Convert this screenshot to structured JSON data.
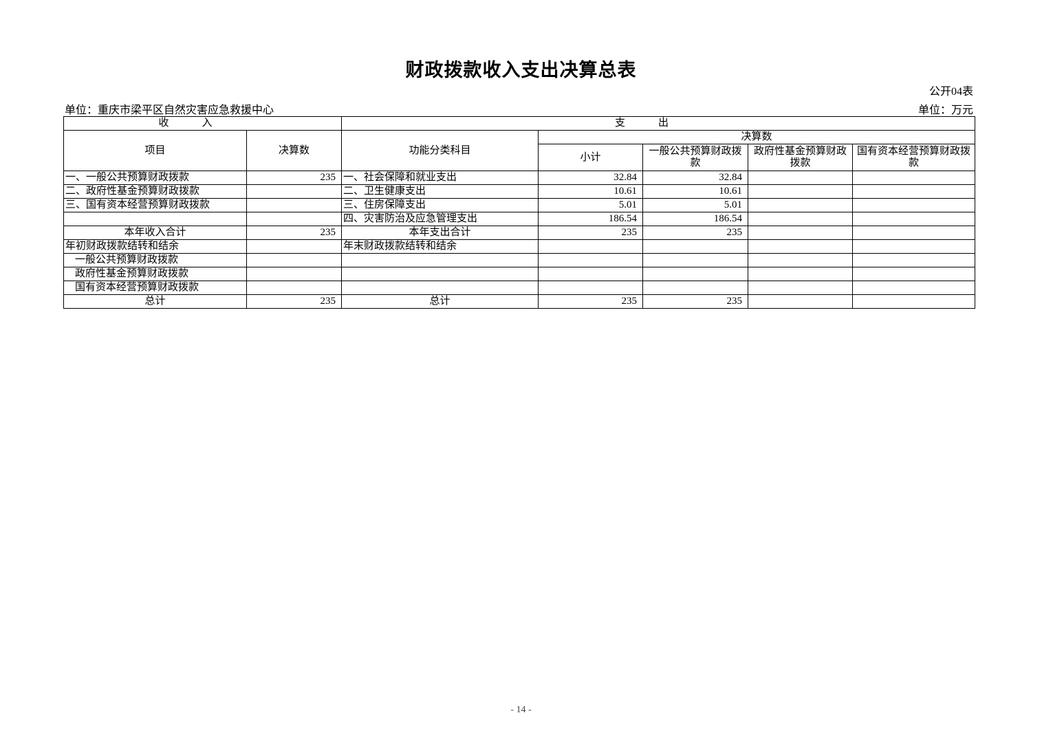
{
  "title": "财政拨款收入支出决算总表",
  "table_no": "公开04表",
  "unit_org": "单位：重庆市梁平区自然灾害应急救援中心",
  "unit_money": "单位：万元",
  "headers": {
    "income": "收入",
    "expense": "支出",
    "item": "项目",
    "amount": "决算数",
    "func_class": "功能分类科目",
    "final_amount": "决算数",
    "subtotal": "小计",
    "general": "一般公共预算财政拨款",
    "gov_fund": "政府性基金预算财政拨款",
    "state_capital": "国有资本经营预算财政拨款"
  },
  "rows": [
    {
      "income_item": "一、一般公共预算财政拨款",
      "income_amount": "235",
      "exp_item": "一、社会保障和就业支出",
      "subtotal": "32.84",
      "general": "32.84",
      "gov_fund": "",
      "state_capital": ""
    },
    {
      "income_item": "二、政府性基金预算财政拨款",
      "income_amount": "",
      "exp_item": "二、卫生健康支出",
      "subtotal": "10.61",
      "general": "10.61",
      "gov_fund": "",
      "state_capital": ""
    },
    {
      "income_item": "三、国有资本经营预算财政拨款",
      "income_amount": "",
      "exp_item": "三、住房保障支出",
      "subtotal": "5.01",
      "general": "5.01",
      "gov_fund": "",
      "state_capital": ""
    },
    {
      "income_item": "",
      "income_amount": "",
      "exp_item": "四、灾害防治及应急管理支出",
      "subtotal": "186.54",
      "general": "186.54",
      "gov_fund": "",
      "state_capital": ""
    },
    {
      "income_item": "本年收入合计",
      "income_amount": "235",
      "exp_item": "本年支出合计",
      "subtotal": "235",
      "general": "235",
      "gov_fund": "",
      "state_capital": ""
    },
    {
      "income_item": "年初财政拨款结转和结余",
      "income_amount": "",
      "exp_item": "年末财政拨款结转和结余",
      "subtotal": "",
      "general": "",
      "gov_fund": "",
      "state_capital": ""
    },
    {
      "income_item": "一般公共预算财政拨款",
      "income_amount": "",
      "exp_item": "",
      "subtotal": "",
      "general": "",
      "gov_fund": "",
      "state_capital": ""
    },
    {
      "income_item": "政府性基金预算财政拨款",
      "income_amount": "",
      "exp_item": "",
      "subtotal": "",
      "general": "",
      "gov_fund": "",
      "state_capital": ""
    },
    {
      "income_item": "国有资本经营预算财政拨款",
      "income_amount": "",
      "exp_item": "",
      "subtotal": "",
      "general": "",
      "gov_fund": "",
      "state_capital": ""
    },
    {
      "income_item": "总计",
      "income_amount": "235",
      "exp_item": "总计",
      "subtotal": "235",
      "general": "235",
      "gov_fund": "",
      "state_capital": ""
    }
  ],
  "page_number": "- 14 -"
}
